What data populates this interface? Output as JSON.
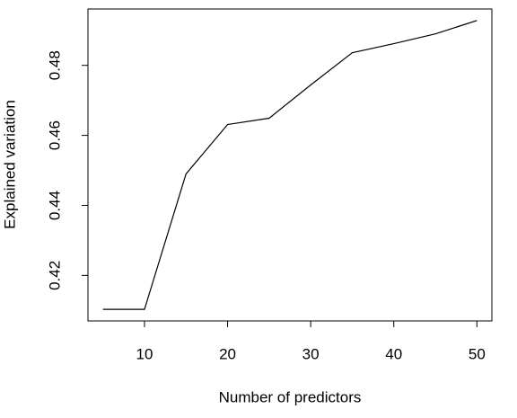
{
  "chart_data": {
    "type": "line",
    "x_label": "Number of predictors",
    "y_label": "Explained variation",
    "x": [
      5,
      10,
      15,
      20,
      25,
      30,
      35,
      40,
      45,
      50
    ],
    "series": [
      {
        "color": "#000000",
        "values": [
          0.4103,
          0.4103,
          0.449,
          0.4631,
          0.4649,
          0.4744,
          0.4836,
          0.4862,
          0.489,
          0.4928
        ]
      }
    ],
    "xlim": [
      3.2,
      51.8
    ],
    "ylim": [
      0.407,
      0.4961
    ],
    "xticks": [
      10,
      20,
      30,
      40,
      50
    ],
    "yticks": [
      0.42,
      0.44,
      0.46,
      0.48
    ]
  }
}
